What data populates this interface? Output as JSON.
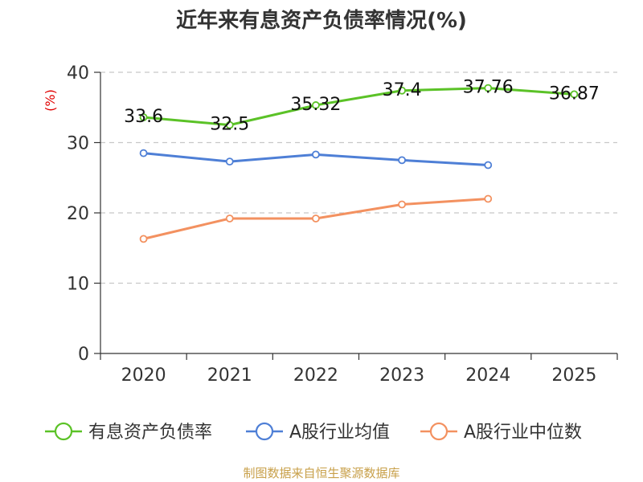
{
  "chart_data": {
    "type": "line",
    "title": "近年来有息资产负债率情况(%)",
    "ylabel": "(%)",
    "xlabel": "",
    "categories": [
      "2020",
      "2021",
      "2022",
      "2023",
      "2024",
      "2025"
    ],
    "ylim": [
      0,
      40
    ],
    "yticks": [
      0,
      10,
      20,
      30,
      40
    ],
    "grid": true,
    "legend_position": "bottom",
    "series": [
      {
        "name": "有息资产负债率",
        "color": "#5bc227",
        "values": [
          33.6,
          32.5,
          35.32,
          37.4,
          37.76,
          36.87
        ],
        "labels": [
          "33.6",
          "32.5",
          "35.32",
          "37.4",
          "37.76",
          "36.87"
        ]
      },
      {
        "name": "A股行业均值",
        "color": "#4e7fd6",
        "values": [
          28.5,
          27.3,
          28.3,
          27.5,
          26.8,
          null
        ]
      },
      {
        "name": "A股行业中位数",
        "color": "#f39160",
        "values": [
          16.3,
          19.2,
          19.2,
          21.2,
          22.0,
          null
        ]
      }
    ]
  },
  "source": "制图数据来自恒生聚源数据库"
}
